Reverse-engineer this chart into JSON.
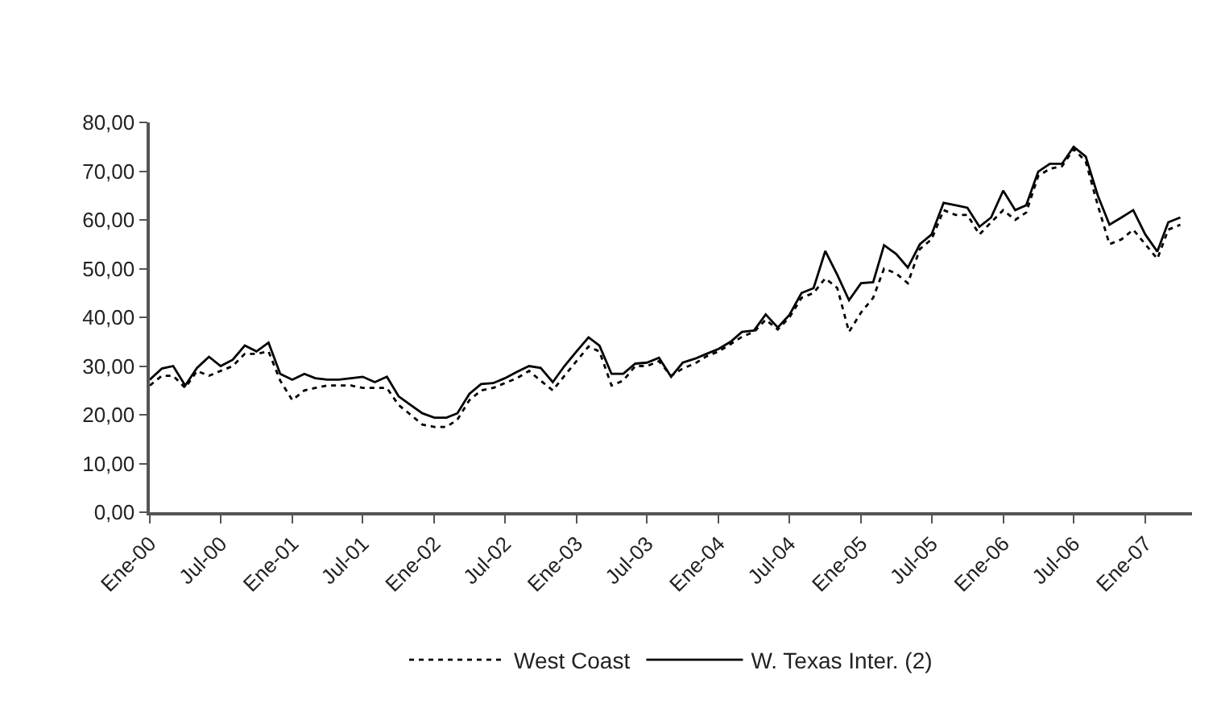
{
  "chart_data": {
    "type": "line",
    "x": [
      "2000-01",
      "2000-02",
      "2000-03",
      "2000-04",
      "2000-05",
      "2000-06",
      "2000-07",
      "2000-08",
      "2000-09",
      "2000-10",
      "2000-11",
      "2000-12",
      "2001-01",
      "2001-02",
      "2001-03",
      "2001-04",
      "2001-05",
      "2001-06",
      "2001-07",
      "2001-08",
      "2001-09",
      "2001-10",
      "2001-11",
      "2001-12",
      "2002-01",
      "2002-02",
      "2002-03",
      "2002-04",
      "2002-05",
      "2002-06",
      "2002-07",
      "2002-08",
      "2002-09",
      "2002-10",
      "2002-11",
      "2002-12",
      "2003-01",
      "2003-02",
      "2003-03",
      "2003-04",
      "2003-05",
      "2003-06",
      "2003-07",
      "2003-08",
      "2003-09",
      "2003-10",
      "2003-11",
      "2003-12",
      "2004-01",
      "2004-02",
      "2004-03",
      "2004-04",
      "2004-05",
      "2004-06",
      "2004-07",
      "2004-08",
      "2004-09",
      "2004-10",
      "2004-11",
      "2004-12",
      "2005-01",
      "2005-02",
      "2005-03",
      "2005-04",
      "2005-05",
      "2005-06",
      "2005-07",
      "2005-08",
      "2005-09",
      "2005-10",
      "2005-11",
      "2005-12",
      "2006-01",
      "2006-02",
      "2006-03",
      "2006-04",
      "2006-05",
      "2006-06",
      "2006-07",
      "2006-08",
      "2006-09",
      "2006-10",
      "2006-11",
      "2006-12",
      "2007-01",
      "2007-02",
      "2007-03",
      "2007-04"
    ],
    "series": [
      {
        "name": "West Coast",
        "color": "#000000",
        "line_style": "dotted",
        "values": [
          26,
          28,
          28,
          25.5,
          29,
          28,
          29,
          30,
          32.5,
          32.5,
          33,
          27,
          23,
          25,
          25.5,
          26,
          26,
          26,
          25.5,
          25.5,
          25.5,
          22,
          20,
          18,
          17.5,
          17.5,
          19,
          23,
          25,
          25.5,
          26.5,
          27.5,
          29,
          27,
          25,
          28,
          31,
          34,
          33,
          26,
          27,
          30,
          30,
          31,
          28,
          29.5,
          30.5,
          32,
          33,
          34.5,
          36,
          37,
          39.5,
          37.5,
          40,
          44,
          45,
          48,
          46,
          37,
          41,
          44,
          50,
          49,
          47,
          54,
          56,
          62,
          61,
          61,
          57,
          59.5,
          62,
          60,
          61.5,
          69,
          70.5,
          71,
          74.5,
          72,
          63,
          55,
          56,
          58,
          55,
          52,
          58,
          59
        ]
      },
      {
        "name": "W. Texas Inter. (2)",
        "color": "#000000",
        "line_style": "solid",
        "values": [
          27.2,
          29.5,
          30,
          26,
          29.6,
          31.9,
          30,
          31.3,
          34.2,
          33,
          34.8,
          28.4,
          27.2,
          28.4,
          27.5,
          27.2,
          27.2,
          27.5,
          27.8,
          26.7,
          27.8,
          23.8,
          22,
          20.3,
          19.4,
          19.4,
          20.3,
          24.3,
          26.3,
          26.5,
          27.5,
          28.8,
          30,
          29.6,
          26.7,
          30,
          33,
          35.9,
          34.2,
          28.4,
          28.4,
          30.5,
          30.7,
          31.7,
          27.8,
          30.7,
          31.5,
          32.5,
          33.5,
          35,
          37,
          37.3,
          40.6,
          37.9,
          40.5,
          45,
          46,
          53.6,
          48.7,
          43.5,
          47,
          47.2,
          54.8,
          53,
          50.2,
          55,
          57,
          63.5,
          63,
          62.5,
          58.6,
          60.5,
          66,
          62,
          63,
          69.9,
          71.5,
          71.5,
          75,
          73,
          65,
          59,
          60.5,
          62,
          57,
          53.5,
          59.5,
          60.5
        ]
      }
    ],
    "xlim": [
      "2000-01",
      "2007-05"
    ],
    "xticks": [
      {
        "value": "2000-01",
        "label": "Ene-00"
      },
      {
        "value": "2000-07",
        "label": "Jul-00"
      },
      {
        "value": "2001-01",
        "label": "Ene-01"
      },
      {
        "value": "2001-07",
        "label": "Jul-01"
      },
      {
        "value": "2002-01",
        "label": "Ene-02"
      },
      {
        "value": "2002-07",
        "label": "Jul-02"
      },
      {
        "value": "2003-01",
        "label": "Ene-03"
      },
      {
        "value": "2003-07",
        "label": "Jul-03"
      },
      {
        "value": "2004-01",
        "label": "Ene-04"
      },
      {
        "value": "2004-07",
        "label": "Jul-04"
      },
      {
        "value": "2005-01",
        "label": "Ene-05"
      },
      {
        "value": "2005-07",
        "label": "Jul-05"
      },
      {
        "value": "2006-01",
        "label": "Ene-06"
      },
      {
        "value": "2006-07",
        "label": "Jul-06"
      },
      {
        "value": "2007-01",
        "label": "Ene-07"
      }
    ],
    "ylim": [
      0,
      80
    ],
    "yticks": [
      {
        "value": 0,
        "label": "0,00"
      },
      {
        "value": 10,
        "label": "10,00"
      },
      {
        "value": 20,
        "label": "20,00"
      },
      {
        "value": 30,
        "label": "30,00"
      },
      {
        "value": 40,
        "label": "40,00"
      },
      {
        "value": 50,
        "label": "50,00"
      },
      {
        "value": 60,
        "label": "60,00"
      },
      {
        "value": 70,
        "label": "70,00"
      },
      {
        "value": 80,
        "label": "80,00"
      }
    ],
    "grid": false,
    "legend": "bottom",
    "marker": "none"
  }
}
